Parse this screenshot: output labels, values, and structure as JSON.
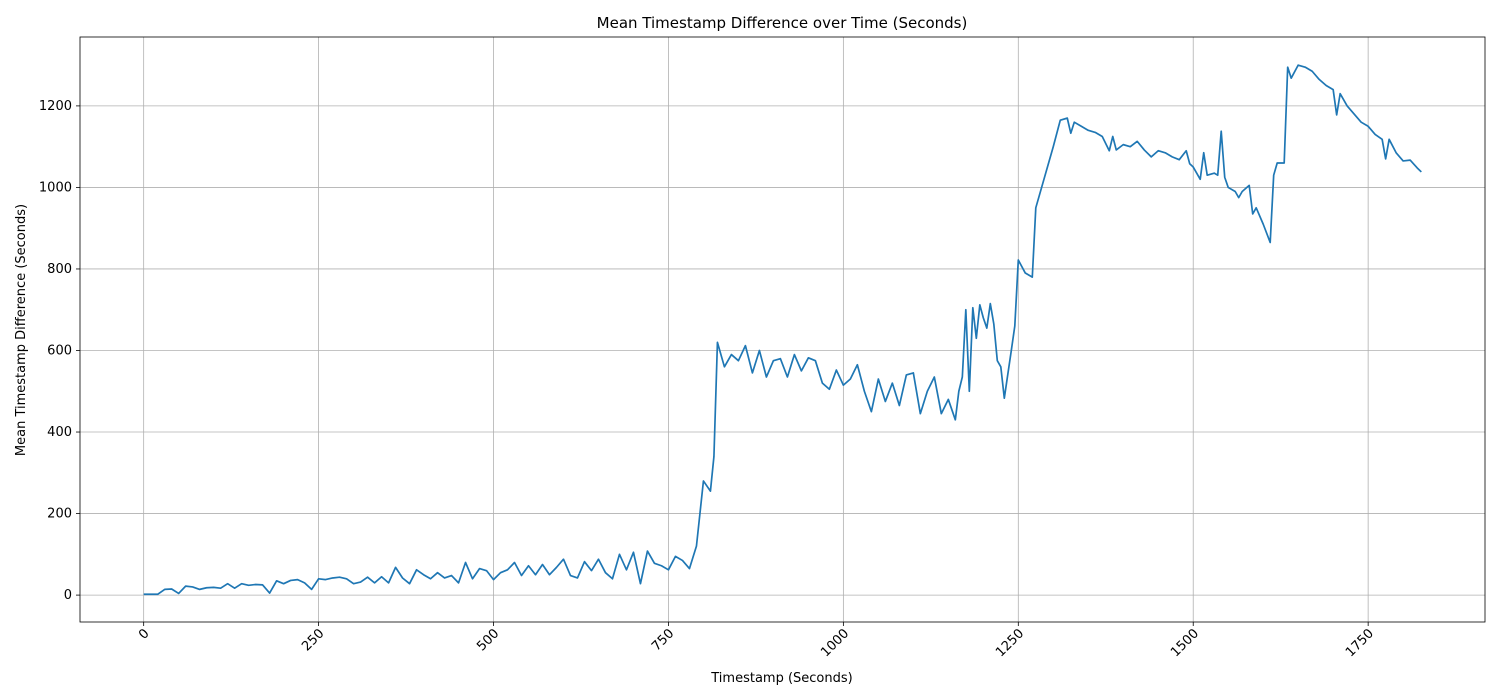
{
  "chart_data": {
    "type": "line",
    "title": "Mean Timestamp Difference over Time (Seconds)",
    "x_label": "Timestamp (Seconds)",
    "y_label": "Mean Timestamp Difference (Seconds)",
    "x": [
      0,
      10,
      20,
      30,
      40,
      50,
      60,
      70,
      80,
      90,
      100,
      110,
      120,
      130,
      140,
      150,
      160,
      170,
      180,
      190,
      200,
      210,
      220,
      230,
      240,
      250,
      260,
      270,
      280,
      290,
      300,
      310,
      320,
      330,
      340,
      350,
      360,
      370,
      380,
      390,
      400,
      410,
      420,
      430,
      440,
      450,
      460,
      470,
      480,
      490,
      500,
      510,
      520,
      530,
      540,
      550,
      560,
      570,
      580,
      590,
      600,
      610,
      620,
      630,
      640,
      650,
      660,
      670,
      680,
      690,
      700,
      710,
      720,
      730,
      740,
      750,
      760,
      770,
      780,
      790,
      800,
      810,
      815,
      820,
      830,
      840,
      850,
      860,
      870,
      880,
      890,
      900,
      910,
      920,
      930,
      940,
      950,
      960,
      970,
      980,
      990,
      1000,
      1010,
      1020,
      1030,
      1040,
      1050,
      1060,
      1070,
      1080,
      1090,
      1100,
      1110,
      1120,
      1130,
      1140,
      1150,
      1160,
      1165,
      1170,
      1175,
      1180,
      1185,
      1190,
      1195,
      1200,
      1205,
      1210,
      1215,
      1220,
      1225,
      1230,
      1240,
      1245,
      1250,
      1260,
      1270,
      1275,
      1300,
      1310,
      1320,
      1325,
      1330,
      1340,
      1350,
      1360,
      1370,
      1380,
      1385,
      1390,
      1400,
      1410,
      1420,
      1430,
      1440,
      1450,
      1460,
      1470,
      1480,
      1490,
      1495,
      1500,
      1510,
      1515,
      1520,
      1530,
      1535,
      1540,
      1545,
      1550,
      1560,
      1565,
      1570,
      1580,
      1585,
      1590,
      1600,
      1610,
      1615,
      1620,
      1630,
      1635,
      1640,
      1650,
      1660,
      1670,
      1680,
      1690,
      1700,
      1705,
      1710,
      1720,
      1730,
      1740,
      1750,
      1760,
      1770,
      1775,
      1780,
      1790,
      1800,
      1810,
      1820,
      1826
    ],
    "series": [
      {
        "name": "Mean Timestamp Difference",
        "color": "#1f77b4",
        "values": [
          2,
          2,
          2,
          14,
          15,
          4,
          22,
          20,
          14,
          18,
          19,
          17,
          28,
          17,
          28,
          24,
          26,
          25,
          5,
          35,
          28,
          36,
          38,
          30,
          14,
          40,
          38,
          42,
          44,
          40,
          28,
          32,
          44,
          30,
          45,
          30,
          68,
          42,
          28,
          62,
          50,
          40,
          55,
          42,
          48,
          30,
          80,
          40,
          65,
          60,
          38,
          55,
          62,
          80,
          48,
          72,
          50,
          75,
          50,
          68,
          88,
          48,
          42,
          82,
          60,
          88,
          55,
          40,
          100,
          62,
          105,
          28,
          108,
          78,
          72,
          62,
          95,
          85,
          65,
          120,
          280,
          255,
          340,
          620,
          560,
          590,
          575,
          612,
          545,
          600,
          535,
          575,
          580,
          535,
          590,
          550,
          582,
          575,
          520,
          505,
          552,
          515,
          530,
          565,
          500,
          450,
          530,
          475,
          520,
          465,
          540,
          545,
          445,
          500,
          535,
          445,
          480,
          430,
          500,
          535,
          700,
          500,
          705,
          630,
          712,
          680,
          655,
          715,
          665,
          575,
          560,
          483,
          600,
          660,
          822,
          790,
          780,
          950,
          1100,
          1165,
          1170,
          1133,
          1160,
          1150,
          1140,
          1135,
          1125,
          1090,
          1125,
          1092,
          1105,
          1100,
          1113,
          1092,
          1075,
          1090,
          1085,
          1075,
          1068,
          1090,
          1058,
          1050,
          1020,
          1085,
          1030,
          1035,
          1030,
          1138,
          1025,
          1000,
          990,
          975,
          990,
          1005,
          935,
          950,
          910,
          865,
          1030,
          1060,
          1060,
          1295,
          1268,
          1300,
          1295,
          1285,
          1265,
          1250,
          1240,
          1178,
          1230,
          1200,
          1180,
          1160,
          1150,
          1130,
          1118,
          1070,
          1118,
          1085,
          1065,
          1067,
          1048,
          1038
        ]
      }
    ],
    "xlim": [
      -91,
      1917
    ],
    "ylim": [
      -66,
      1369
    ],
    "xticks": [
      0,
      250,
      500,
      750,
      1000,
      1250,
      1500,
      1750
    ],
    "yticks": [
      0,
      200,
      400,
      600,
      800,
      1000,
      1200
    ],
    "grid": true
  }
}
